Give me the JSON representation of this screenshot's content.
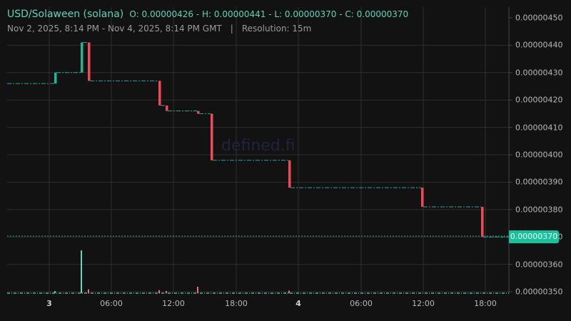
{
  "header": {
    "pair": "USD/Solaween (solana)",
    "ohlc": "O: 0.00000426 - H: 0.00000441 - L: 0.00000370 - C: 0.00000370",
    "range": "Nov 2, 2025, 8:14 PM - Nov 4, 2025, 8:14 PM GMT",
    "separator": "|",
    "resolution": "Resolution: 15m"
  },
  "watermark": "defined.fi",
  "current_price_label": "0.00000370",
  "colors": {
    "background": "#121212",
    "grid": "#2e2e2e",
    "up": "#1fb894",
    "down": "#ef4a57",
    "line": "#26a69a",
    "price_tag": "#15c39a",
    "text": "#b8b8b8"
  },
  "chart_data": {
    "type": "candlestick",
    "title": "USD/Solaween (solana)",
    "subtitle": "Nov 2, 2025, 8:14 PM - Nov 4, 2025, 8:14 PM GMT | Resolution: 15m",
    "ohlc_summary": {
      "open": 4.26e-06,
      "high": 4.41e-06,
      "low": 3.7e-06,
      "close": 3.7e-06
    },
    "y_ticks": [
      "0.00000450",
      "0.00000440",
      "0.00000430",
      "0.00000420",
      "0.00000410",
      "0.00000400",
      "0.00000390",
      "0.00000380",
      "0.00000370",
      "0.00000360",
      "0.00000350"
    ],
    "ylim": [
      3.5e-06,
      4.5e-06
    ],
    "x_ticks": [
      "3",
      "06:00",
      "12:00",
      "18:00",
      "4",
      "06:00",
      "12:00",
      "18:00"
    ],
    "grid": true,
    "price_steps": [
      {
        "time": "Nov 2 20:14",
        "price": 4.26e-06
      },
      {
        "time": "Nov 3 ~00:30",
        "price": 4.3e-06,
        "direction": "up"
      },
      {
        "time": "Nov 3 ~03:00",
        "price": 4.41e-06,
        "direction": "up"
      },
      {
        "time": "Nov 3 ~03:45",
        "price": 4.27e-06,
        "direction": "down"
      },
      {
        "time": "Nov 3 ~10:30",
        "price": 4.18e-06,
        "direction": "down"
      },
      {
        "time": "Nov 3 ~11:15",
        "price": 4.16e-06,
        "direction": "down"
      },
      {
        "time": "Nov 3 ~14:15",
        "price": 4.15e-06,
        "direction": "down"
      },
      {
        "time": "Nov 3 ~15:30",
        "price": 3.98e-06,
        "direction": "down"
      },
      {
        "time": "Nov 3 ~23:00",
        "price": 3.88e-06,
        "direction": "down"
      },
      {
        "time": "Nov 4 ~12:00",
        "price": 3.81e-06,
        "direction": "down"
      },
      {
        "time": "Nov 4 ~17:45",
        "price": 3.7e-06,
        "direction": "down"
      }
    ],
    "current_price": 3.7e-06,
    "volume_spikes": [
      {
        "time": "Nov 3 ~00:30",
        "relative": 0.05,
        "direction": "up"
      },
      {
        "time": "Nov 3 ~03:00",
        "relative": 1.0,
        "direction": "up"
      },
      {
        "time": "Nov 3 ~03:45",
        "relative": 0.09,
        "direction": "down"
      },
      {
        "time": "Nov 3 ~10:30",
        "relative": 0.07,
        "direction": "down"
      },
      {
        "time": "Nov 3 ~11:15",
        "relative": 0.05,
        "direction": "down"
      },
      {
        "time": "Nov 3 ~14:15",
        "relative": 0.15,
        "direction": "down"
      },
      {
        "time": "Nov 3 ~23:00",
        "relative": 0.06,
        "direction": "down"
      }
    ]
  }
}
